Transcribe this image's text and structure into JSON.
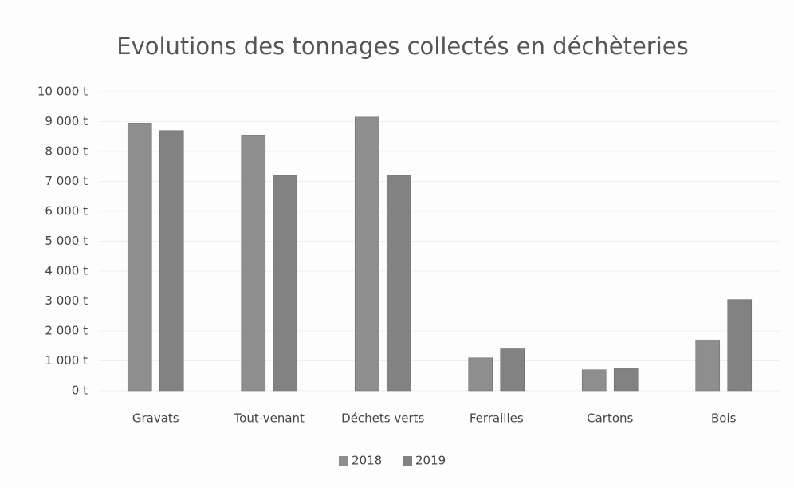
{
  "chart_data": {
    "type": "bar",
    "title": "Evolutions des tonnages collectés en déchèteries",
    "categories": [
      "Gravats",
      "Tout-venant",
      "Déchets verts",
      "Ferrailles",
      "Cartons",
      "Bois"
    ],
    "series": [
      {
        "name": "2018",
        "color": "#8e8e8e",
        "values": [
          8950,
          8550,
          9150,
          1100,
          700,
          1700
        ]
      },
      {
        "name": "2019",
        "color": "#828282",
        "values": [
          8700,
          7200,
          7200,
          1400,
          750,
          3050
        ]
      }
    ],
    "ylim": [
      0,
      10000
    ],
    "yticks": [
      {
        "value": 0,
        "label": "0 t"
      },
      {
        "value": 1000,
        "label": "1 000 t"
      },
      {
        "value": 2000,
        "label": "2 000 t"
      },
      {
        "value": 3000,
        "label": "3 000 t"
      },
      {
        "value": 4000,
        "label": "4 000 t"
      },
      {
        "value": 5000,
        "label": "5 000 t"
      },
      {
        "value": 6000,
        "label": "6 000 t"
      },
      {
        "value": 7000,
        "label": "7 000 t"
      },
      {
        "value": 8000,
        "label": "8 000 t"
      },
      {
        "value": 9000,
        "label": "9 000 t"
      },
      {
        "value": 10000,
        "label": "10 000 t"
      }
    ],
    "grid": true,
    "legend": "bottom"
  }
}
